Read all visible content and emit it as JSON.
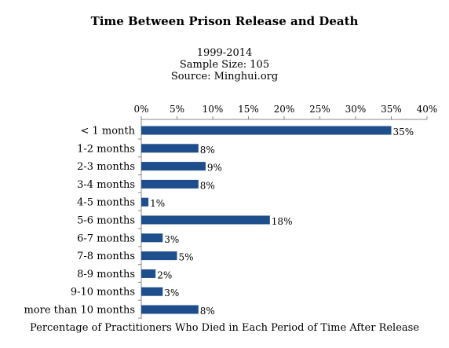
{
  "chart_data": {
    "type": "bar",
    "orientation": "horizontal",
    "title": "Time Between Prison Release and Death",
    "subtitle_lines": [
      "1999-2014",
      "Sample Size: 105",
      "Source: Minghui.org"
    ],
    "xlabel": "Percentage of Practitioners Who Died in Each Period of Time After Release",
    "ylabel": "",
    "xlim": [
      0,
      40
    ],
    "x_tick_values": [
      0,
      5,
      10,
      15,
      20,
      25,
      30,
      35,
      40
    ],
    "x_tick_labels": [
      "0%",
      "5%",
      "10%",
      "15%",
      "20%",
      "25%",
      "30%",
      "35%",
      "40%"
    ],
    "x_axis_position": "top",
    "grid": false,
    "bar_color": "#1f4e8c",
    "categories": [
      "< 1 month",
      "1-2 months",
      "2-3 months",
      "3-4 months",
      "4-5 months",
      "5-6 months",
      "6-7 months",
      "7-8 months",
      "8-9 months",
      "9-10 months",
      "more than 10 months"
    ],
    "values": [
      35,
      8,
      9,
      8,
      1,
      18,
      3,
      5,
      2,
      3,
      8
    ],
    "data_labels": [
      "35%",
      "8%",
      "9%",
      "8%",
      "1%",
      "18%",
      "3%",
      "5%",
      "2%",
      "3%",
      "8%"
    ]
  }
}
